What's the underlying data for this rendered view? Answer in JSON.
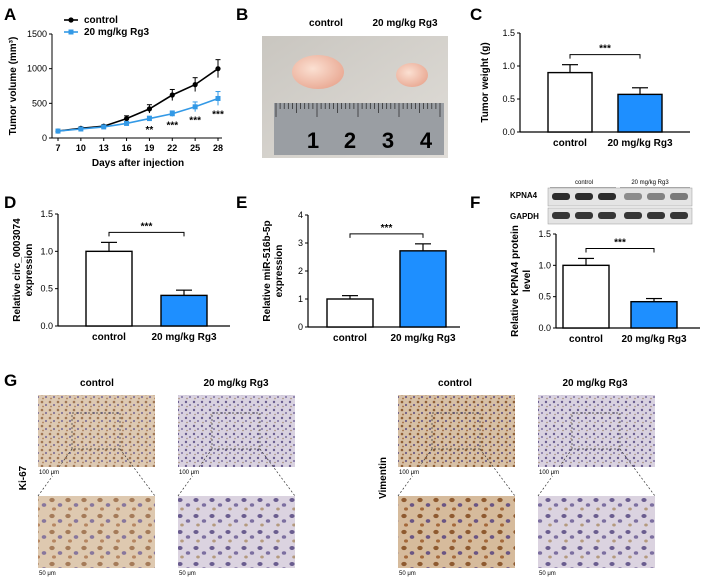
{
  "panels": {
    "A": {
      "label": "A"
    },
    "B": {
      "label": "B",
      "photo_labels": [
        "control",
        "20 mg/kg Rg3"
      ],
      "ruler_numbers": [
        "1",
        "2",
        "3",
        "4"
      ]
    },
    "C": {
      "label": "C"
    },
    "D": {
      "label": "D"
    },
    "E": {
      "label": "E"
    },
    "F": {
      "label": "F",
      "blot_groups": [
        "control",
        "20 mg/kg Rg3"
      ],
      "blot_rows": [
        "KPNA4",
        "GAPDH"
      ]
    },
    "G": {
      "label": "G",
      "column_titles": [
        "control",
        "20 mg/kg Rg3",
        "control",
        "20 mg/kg Rg3"
      ],
      "row_markers": [
        "Ki-67",
        "Vimentin"
      ],
      "scalebars": [
        "100 μm",
        "50 μm"
      ]
    }
  },
  "chart_data": [
    {
      "id": "A",
      "type": "line",
      "xlabel": "Days after injection",
      "ylabel": "Tumor volume (mm³)",
      "x": [
        7,
        10,
        13,
        16,
        19,
        22,
        25,
        28
      ],
      "xlim": [
        7,
        28
      ],
      "ylim": [
        0,
        1500
      ],
      "yticks": [
        0,
        500,
        1000,
        1500
      ],
      "legend_position": "top-left",
      "series": [
        {
          "name": "control",
          "color": "#000000",
          "values": [
            100,
            140,
            170,
            280,
            420,
            620,
            770,
            1000
          ],
          "errors": [
            15,
            20,
            20,
            40,
            60,
            80,
            100,
            130
          ]
        },
        {
          "name": "20 mg/kg Rg3",
          "color": "#3399e6",
          "values": [
            100,
            130,
            160,
            210,
            280,
            350,
            450,
            570
          ],
          "errors": [
            15,
            15,
            20,
            25,
            35,
            40,
            70,
            100
          ]
        }
      ],
      "annotations": [
        {
          "x": 19,
          "text": "**"
        },
        {
          "x": 22,
          "text": "***"
        },
        {
          "x": 25,
          "text": "***"
        },
        {
          "x": 28,
          "text": "***"
        }
      ]
    },
    {
      "id": "C",
      "type": "bar",
      "ylabel": "Tumor weight (g)",
      "categories": [
        "control",
        "20 mg/kg Rg3"
      ],
      "values": [
        0.9,
        0.57
      ],
      "errors": [
        0.12,
        0.1
      ],
      "colors": [
        "#ffffff",
        "#1e8fff"
      ],
      "ylim": [
        0,
        1.5
      ],
      "yticks": [
        "0.0",
        "0.5",
        "1.0",
        "1.5"
      ],
      "significance": "***"
    },
    {
      "id": "D",
      "type": "bar",
      "ylabel": "Relative circ_0003074 expression",
      "categories": [
        "control",
        "20 mg/kg Rg3"
      ],
      "values": [
        1.0,
        0.41
      ],
      "errors": [
        0.12,
        0.07
      ],
      "colors": [
        "#ffffff",
        "#1e8fff"
      ],
      "ylim": [
        0,
        1.5
      ],
      "yticks": [
        "0.0",
        "0.5",
        "1.0",
        "1.5"
      ],
      "significance": "***"
    },
    {
      "id": "E",
      "type": "bar",
      "ylabel": "Relative miR-516b-5p expression",
      "categories": [
        "control",
        "20 mg/kg Rg3"
      ],
      "values": [
        1.0,
        2.72
      ],
      "errors": [
        0.12,
        0.25
      ],
      "colors": [
        "#ffffff",
        "#1e8fff"
      ],
      "ylim": [
        0,
        4
      ],
      "yticks": [
        "0",
        "1",
        "2",
        "3",
        "4"
      ],
      "significance": "***"
    },
    {
      "id": "F",
      "type": "bar",
      "ylabel": "Relative KPNA4 protein level",
      "categories": [
        "control",
        "20 mg/kg Rg3"
      ],
      "values": [
        1.0,
        0.42
      ],
      "errors": [
        0.11,
        0.05
      ],
      "colors": [
        "#ffffff",
        "#1e8fff"
      ],
      "ylim": [
        0,
        1.5
      ],
      "yticks": [
        "0.0",
        "0.5",
        "1.0",
        "1.5"
      ],
      "significance": "***"
    }
  ]
}
